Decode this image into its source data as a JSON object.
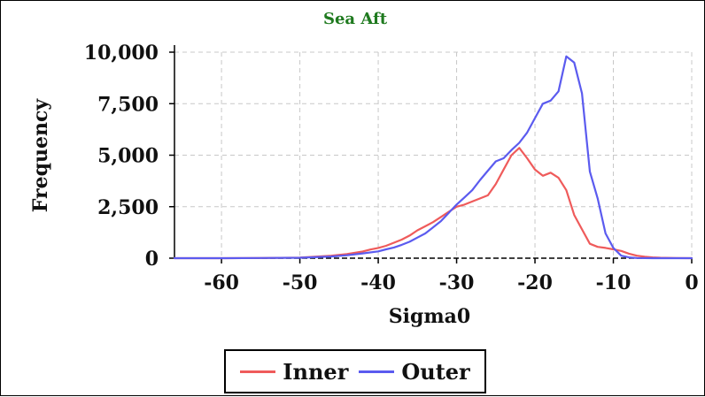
{
  "chart_data": {
    "type": "line",
    "title": "Sea Aft",
    "title_color": "#1f7a1f",
    "xlabel": "Sigma0",
    "ylabel": "Frequency",
    "xlim": [
      -66,
      0
    ],
    "ylim": [
      0,
      10000
    ],
    "x_ticks": [
      -60,
      -50,
      -40,
      -30,
      -20,
      -10,
      0
    ],
    "x_tick_labels": [
      "-60",
      "-50",
      "-40",
      "-30",
      "-20",
      "-10",
      "0"
    ],
    "y_ticks": [
      0,
      2500,
      5000,
      7500,
      10000
    ],
    "y_tick_labels": [
      "0",
      "2,500",
      "5,000",
      "7,500",
      "10,000"
    ],
    "grid": true,
    "legend_position": "bottom",
    "series": [
      {
        "name": "Inner",
        "color": "#ef5b5b",
        "x": [
          -66,
          -60,
          -55,
          -50,
          -46,
          -44,
          -42,
          -41,
          -40,
          -39,
          -38,
          -37,
          -36,
          -35,
          -34,
          -33,
          -32,
          -31,
          -30,
          -29,
          -28,
          -27,
          -26,
          -25,
          -24,
          -23,
          -22,
          -21,
          -20,
          -19,
          -18,
          -17,
          -16,
          -15,
          -14,
          -13,
          -12,
          -11,
          -10,
          -9,
          -8,
          -7,
          -6,
          -5,
          -4,
          -2,
          0
        ],
        "y": [
          0,
          0,
          10,
          30,
          120,
          200,
          320,
          420,
          500,
          600,
          750,
          900,
          1100,
          1350,
          1550,
          1750,
          2000,
          2250,
          2500,
          2600,
          2750,
          2900,
          3050,
          3600,
          4300,
          5000,
          5350,
          4850,
          4300,
          4000,
          4150,
          3900,
          3300,
          2100,
          1400,
          700,
          550,
          500,
          430,
          350,
          220,
          120,
          70,
          40,
          20,
          5,
          0
        ]
      },
      {
        "name": "Outer",
        "color": "#5b5bef",
        "x": [
          -66,
          -60,
          -55,
          -50,
          -46,
          -44,
          -42,
          -40,
          -39,
          -38,
          -37,
          -36,
          -35,
          -34,
          -33,
          -32,
          -31,
          -30,
          -29,
          -28,
          -27,
          -26,
          -25,
          -24,
          -23,
          -22,
          -21,
          -20,
          -19,
          -18,
          -17,
          -16,
          -15,
          -14,
          -13,
          -12,
          -11,
          -10,
          -9,
          -8,
          -7,
          -5,
          -2,
          0
        ],
        "y": [
          0,
          0,
          10,
          20,
          80,
          140,
          230,
          330,
          430,
          520,
          650,
          800,
          1000,
          1200,
          1500,
          1800,
          2200,
          2600,
          2950,
          3300,
          3800,
          4250,
          4700,
          4850,
          5250,
          5600,
          6100,
          6800,
          7500,
          7650,
          8100,
          9800,
          9500,
          8000,
          4200,
          2900,
          1200,
          500,
          120,
          40,
          10,
          0,
          0,
          0
        ]
      }
    ]
  }
}
